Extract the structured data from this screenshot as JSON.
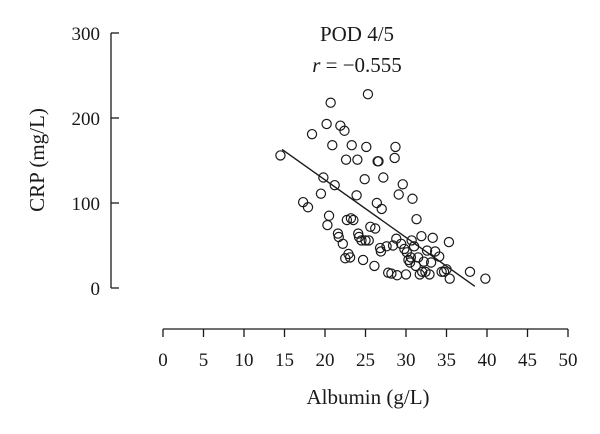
{
  "chart_data": {
    "type": "scatter",
    "annotation_title": "POD 4/5",
    "annotation_r_symbol": "r",
    "annotation_r_value": " = −0.555",
    "xlabel": "Albumin (g/L)",
    "ylabel": "CRP (mg/L)",
    "xlim": [
      0,
      50
    ],
    "ylim": [
      0,
      300
    ],
    "x_ticks": [
      0,
      5,
      10,
      15,
      20,
      25,
      30,
      35,
      40,
      45,
      50
    ],
    "y_ticks": [
      0,
      100,
      200,
      300
    ],
    "grid": false,
    "marker_color": "#1a1a1a",
    "fit_line": {
      "x": [
        14.7,
        38.5
      ],
      "y": [
        163,
        2
      ]
    },
    "points": [
      {
        "x": 14.5,
        "y": 156
      },
      {
        "x": 17.3,
        "y": 101
      },
      {
        "x": 17.9,
        "y": 95
      },
      {
        "x": 18.4,
        "y": 181
      },
      {
        "x": 19.5,
        "y": 111
      },
      {
        "x": 19.8,
        "y": 130
      },
      {
        "x": 20.2,
        "y": 193
      },
      {
        "x": 20.3,
        "y": 74
      },
      {
        "x": 20.5,
        "y": 85
      },
      {
        "x": 20.7,
        "y": 218
      },
      {
        "x": 20.9,
        "y": 168
      },
      {
        "x": 21.2,
        "y": 121
      },
      {
        "x": 21.6,
        "y": 64
      },
      {
        "x": 21.7,
        "y": 60
      },
      {
        "x": 21.9,
        "y": 191
      },
      {
        "x": 22.2,
        "y": 52
      },
      {
        "x": 22.4,
        "y": 185
      },
      {
        "x": 22.5,
        "y": 35
      },
      {
        "x": 22.6,
        "y": 151
      },
      {
        "x": 22.7,
        "y": 80
      },
      {
        "x": 22.9,
        "y": 40
      },
      {
        "x": 23.1,
        "y": 36
      },
      {
        "x": 23.2,
        "y": 82
      },
      {
        "x": 23.3,
        "y": 168
      },
      {
        "x": 23.5,
        "y": 80
      },
      {
        "x": 23.9,
        "y": 109
      },
      {
        "x": 24.0,
        "y": 151
      },
      {
        "x": 24.1,
        "y": 64
      },
      {
        "x": 24.2,
        "y": 60
      },
      {
        "x": 24.5,
        "y": 56
      },
      {
        "x": 24.7,
        "y": 33
      },
      {
        "x": 24.9,
        "y": 128
      },
      {
        "x": 25.0,
        "y": 56
      },
      {
        "x": 25.1,
        "y": 166
      },
      {
        "x": 25.3,
        "y": 228
      },
      {
        "x": 25.4,
        "y": 56
      },
      {
        "x": 25.6,
        "y": 72
      },
      {
        "x": 26.1,
        "y": 26
      },
      {
        "x": 26.2,
        "y": 70
      },
      {
        "x": 26.4,
        "y": 100
      },
      {
        "x": 26.5,
        "y": 149
      },
      {
        "x": 26.6,
        "y": 149
      },
      {
        "x": 26.8,
        "y": 47
      },
      {
        "x": 26.9,
        "y": 43
      },
      {
        "x": 27.0,
        "y": 93
      },
      {
        "x": 27.2,
        "y": 130
      },
      {
        "x": 27.6,
        "y": 49
      },
      {
        "x": 27.8,
        "y": 18
      },
      {
        "x": 28.2,
        "y": 17
      },
      {
        "x": 28.4,
        "y": 50
      },
      {
        "x": 28.6,
        "y": 153
      },
      {
        "x": 28.7,
        "y": 166
      },
      {
        "x": 28.8,
        "y": 58
      },
      {
        "x": 28.9,
        "y": 15
      },
      {
        "x": 29.1,
        "y": 110
      },
      {
        "x": 29.4,
        "y": 52
      },
      {
        "x": 29.6,
        "y": 122
      },
      {
        "x": 29.8,
        "y": 46
      },
      {
        "x": 30.0,
        "y": 16
      },
      {
        "x": 30.1,
        "y": 42
      },
      {
        "x": 30.3,
        "y": 33
      },
      {
        "x": 30.5,
        "y": 30
      },
      {
        "x": 30.6,
        "y": 36
      },
      {
        "x": 30.7,
        "y": 56
      },
      {
        "x": 30.8,
        "y": 105
      },
      {
        "x": 31.0,
        "y": 49
      },
      {
        "x": 31.2,
        "y": 26
      },
      {
        "x": 31.3,
        "y": 81
      },
      {
        "x": 31.5,
        "y": 36
      },
      {
        "x": 31.7,
        "y": 16
      },
      {
        "x": 31.9,
        "y": 61
      },
      {
        "x": 32.0,
        "y": 19
      },
      {
        "x": 32.2,
        "y": 31
      },
      {
        "x": 32.4,
        "y": 19
      },
      {
        "x": 32.6,
        "y": 44
      },
      {
        "x": 32.9,
        "y": 16
      },
      {
        "x": 33.1,
        "y": 30
      },
      {
        "x": 33.3,
        "y": 59
      },
      {
        "x": 33.6,
        "y": 43
      },
      {
        "x": 34.1,
        "y": 37
      },
      {
        "x": 34.4,
        "y": 19
      },
      {
        "x": 34.7,
        "y": 19
      },
      {
        "x": 35.0,
        "y": 22
      },
      {
        "x": 35.3,
        "y": 54
      },
      {
        "x": 35.4,
        "y": 11
      },
      {
        "x": 37.9,
        "y": 19
      },
      {
        "x": 39.8,
        "y": 11
      }
    ]
  }
}
